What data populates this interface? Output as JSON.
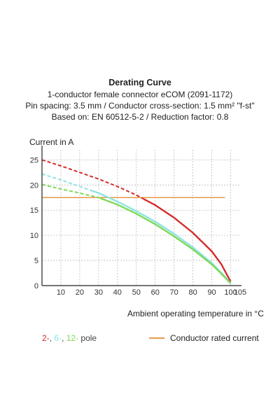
{
  "header": {
    "title": "Derating Curve",
    "line1": "1-conductor female connector eCOM (2091-1172)",
    "line2": "Pin spacing: 3.5 mm / Conductor cross-section: 1.5 mm² \"f-st\"",
    "line3": "Based on: EN 60512-5-2 / Reduction factor: 0.8"
  },
  "chart_data": {
    "type": "line",
    "xlabel": "Ambient operating temperature in °C",
    "ylabel": "Current in A",
    "xlim": [
      0,
      105
    ],
    "ylim": [
      0,
      27
    ],
    "x_ticks": [
      10,
      20,
      30,
      40,
      50,
      60,
      70,
      80,
      90,
      100,
      105
    ],
    "y_ticks": [
      0,
      5,
      10,
      15,
      20,
      25
    ],
    "grid": true,
    "grid_style": "dashed",
    "rated_current": {
      "value": 17.5,
      "color": "#e69a4a"
    },
    "series": [
      {
        "color": "#d42c2c",
        "points": [
          [
            0,
            25.0
          ],
          [
            10,
            23.8
          ],
          [
            20,
            22.5
          ],
          [
            30,
            21.2
          ],
          [
            40,
            19.7
          ],
          [
            50,
            18.0
          ],
          [
            60,
            16.0
          ],
          [
            70,
            13.5
          ],
          [
            80,
            10.5
          ],
          [
            90,
            6.8
          ],
          [
            95,
            4.3
          ],
          [
            100,
            0.8
          ]
        ],
        "dashed_below_x": 54
      },
      {
        "color": "#8fe4e0",
        "points": [
          [
            0,
            22.2
          ],
          [
            10,
            21.0
          ],
          [
            20,
            19.7
          ],
          [
            30,
            18.4
          ],
          [
            40,
            16.7
          ],
          [
            50,
            14.8
          ],
          [
            60,
            12.7
          ],
          [
            70,
            10.3
          ],
          [
            80,
            7.6
          ],
          [
            90,
            4.5
          ],
          [
            95,
            2.6
          ],
          [
            100,
            0.5
          ]
        ],
        "dashed_below_x": 26
      },
      {
        "color": "#7ed957",
        "points": [
          [
            0,
            20.1
          ],
          [
            10,
            19.2
          ],
          [
            20,
            18.4
          ],
          [
            30,
            17.5
          ],
          [
            40,
            16.1
          ],
          [
            50,
            14.3
          ],
          [
            60,
            12.2
          ],
          [
            70,
            9.8
          ],
          [
            80,
            7.2
          ],
          [
            90,
            4.2
          ],
          [
            95,
            2.4
          ],
          [
            100,
            0.4
          ]
        ],
        "dashed_below_x": 31
      }
    ]
  },
  "legend": {
    "poles": [
      {
        "text": "2-",
        "color": "#d42c2c"
      },
      {
        "text": ",",
        "color": "#444444"
      },
      {
        "text": " 6-",
        "color": "#8fe4e0"
      },
      {
        "text": ",",
        "color": "#444444"
      },
      {
        "text": " 12-",
        "color": "#7ed957"
      },
      {
        "text": " pole",
        "color": "#444444"
      }
    ],
    "rated_label": "Conductor rated current",
    "rated_color": "#e69a4a"
  }
}
